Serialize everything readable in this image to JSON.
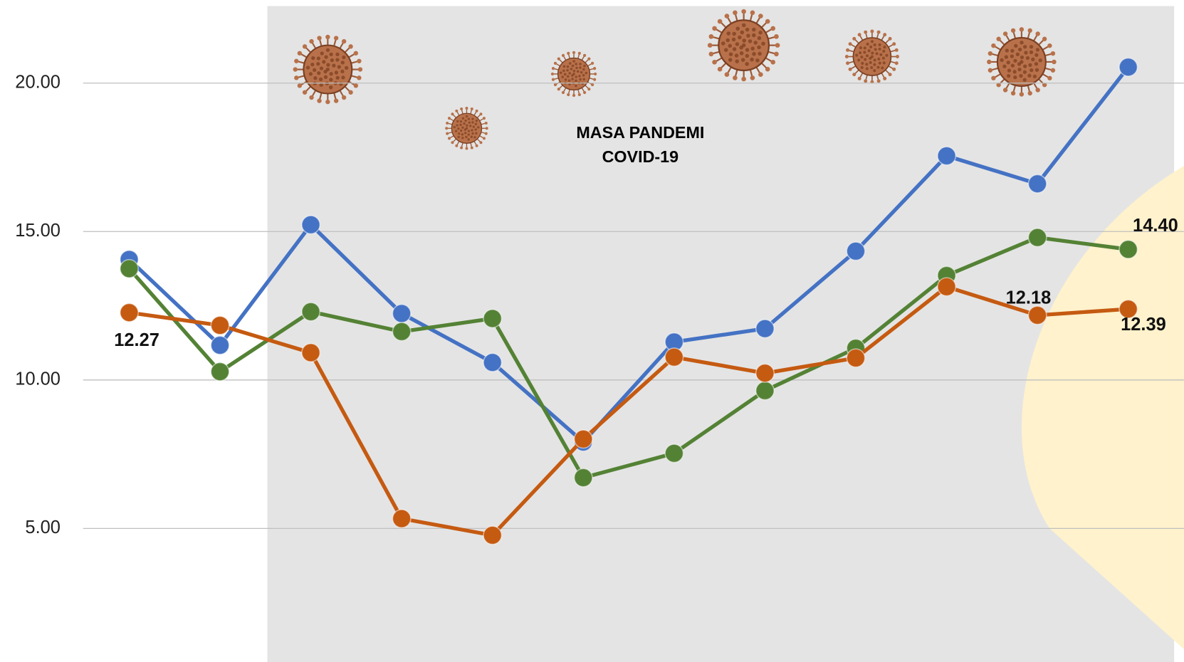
{
  "chart_data": {
    "type": "line",
    "annotation": [
      "MASA PANDEMI",
      "COVID-19"
    ],
    "categories": [
      null,
      null,
      null,
      null,
      null,
      null,
      null,
      null,
      null,
      null,
      null,
      null
    ],
    "series": [
      {
        "color": "#4472c4",
        "values": [
          14.06,
          11.17,
          15.23,
          12.24,
          10.59,
          7.91,
          11.28,
          11.73,
          14.34,
          17.55,
          16.61,
          20.54
        ]
      },
      {
        "color": "#548235",
        "values": [
          13.75,
          10.28,
          12.3,
          11.63,
          12.07,
          6.71,
          7.53,
          9.64,
          11.07,
          13.52,
          14.8,
          14.4
        ],
        "value_labels": [
          null,
          null,
          null,
          null,
          null,
          null,
          null,
          null,
          null,
          null,
          null,
          "14.40"
        ]
      },
      {
        "color": "#c55a11",
        "values": [
          12.27,
          11.84,
          10.92,
          5.33,
          4.77,
          8.01,
          10.77,
          10.23,
          10.74,
          13.14,
          12.18,
          12.39
        ],
        "value_labels": [
          "12.27",
          null,
          null,
          null,
          null,
          null,
          null,
          null,
          null,
          null,
          "12.18",
          "12.39"
        ]
      }
    ],
    "ylim": [
      0.5,
      22.8
    ],
    "yticks": [
      {
        "value": 5,
        "label": "5.00"
      },
      {
        "value": 10,
        "label": "10.00"
      },
      {
        "value": 15,
        "label": "15.00"
      },
      {
        "value": 20,
        "label": "20.00"
      }
    ],
    "grid": true
  }
}
